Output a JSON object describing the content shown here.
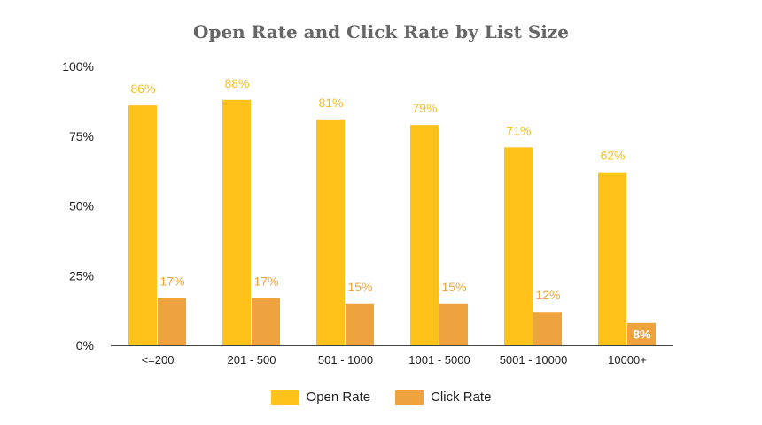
{
  "chart_data": {
    "type": "bar",
    "title": "Open Rate and Click Rate by List Size",
    "xlabel": "",
    "ylabel": "",
    "categories": [
      "<=200",
      "201 - 500",
      "501 - 1000",
      "1001 - 5000",
      "5001 - 10000",
      "10000+"
    ],
    "series": [
      {
        "name": "Open Rate",
        "color": "#FFC21A",
        "label_color": "#F4BF1A",
        "values": [
          86,
          88,
          81,
          79,
          71,
          62
        ],
        "data_labels": [
          "86%",
          "88%",
          "81%",
          "79%",
          "71%",
          "62%"
        ]
      },
      {
        "name": "Click Rate",
        "color": "#EFA33E",
        "label_color": "#EFA33E",
        "values": [
          17,
          17,
          15,
          15,
          12,
          8
        ],
        "data_labels": [
          "17%",
          "17%",
          "15%",
          "15%",
          "12%",
          "8%"
        ]
      }
    ],
    "ylim": [
      0,
      100
    ],
    "yticks": [
      0,
      25,
      50,
      75,
      100
    ],
    "ytick_labels": [
      "0%",
      "25%",
      "50%",
      "75%",
      "100%"
    ],
    "grid": false,
    "legend_position": "bottom-center"
  }
}
